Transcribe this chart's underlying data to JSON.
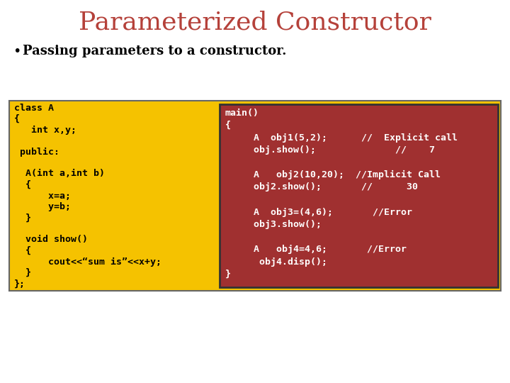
{
  "title": "Parameterized Constructor",
  "title_color": "#b5413a",
  "title_fontsize": 26,
  "bullet_text": "Passing parameters to a constructor.",
  "bullet_fontsize": 13,
  "bg_color": "#ffffff",
  "outer_box_color": "#f5c200",
  "outer_box_border": "#666666",
  "inner_box_color": "#a03030",
  "inner_box_border": "#333333",
  "left_code_color": "#000000",
  "right_code_color": "#ffffff",
  "left_code": [
    "class A",
    "{",
    "   int x,y;",
    "",
    " public:",
    "",
    "  A(int a,int b)",
    "  {",
    "      x=a;",
    "      y=b;",
    "  }",
    "",
    "  void show()",
    "  {",
    "      cout<<“sum is”<<x+y;",
    "  }",
    "};"
  ],
  "right_code": [
    "main()",
    "{",
    "     A  obj1(5,2);      //  Explicit call",
    "     obj.show();              //    7",
    "",
    "     A   obj2(10,20);  //Implicit Call",
    "     obj2.show();       //      30",
    "",
    "     A  obj3=(4,6);       //Error",
    "     obj3.show();",
    "",
    "     A   obj4=4,6;       //Error",
    "      obj4.disp();",
    "}"
  ],
  "code_fontsize": 9.5
}
